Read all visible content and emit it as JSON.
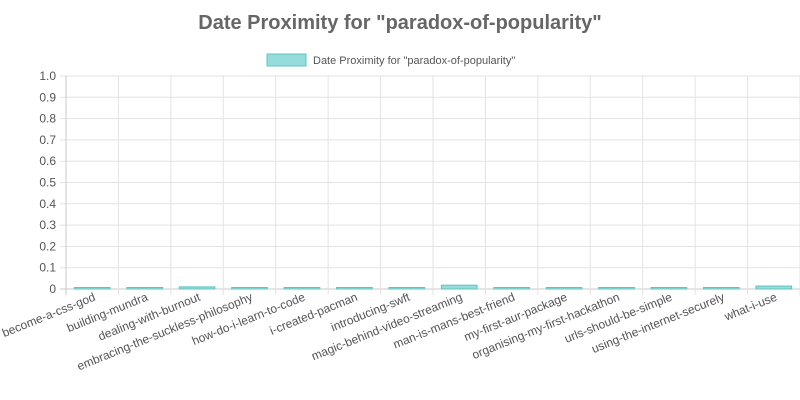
{
  "chart_data": {
    "type": "bar",
    "title": "Date Proximity for \"paradox-of-popularity\"",
    "legend": {
      "position": "top",
      "label": "Date Proximity for \"paradox-of-popularity\""
    },
    "grid": true,
    "ylim": [
      0,
      1
    ],
    "yticks": [
      "0",
      "0.1",
      "0.2",
      "0.3",
      "0.4",
      "0.5",
      "0.6",
      "0.7",
      "0.8",
      "0.9",
      "1.0"
    ],
    "categories": [
      "become-a-css-god",
      "building-mundra",
      "dealing-with-burnout",
      "embracing-the-suckless-philosophy",
      "how-do-i-learn-to-code",
      "i-created-pacman",
      "introducing-swft",
      "magic-behind-video-streaming",
      "man-is-mans-best-friend",
      "my-first-aur-package",
      "organising-my-first-hackathon",
      "urls-should-be-simple",
      "using-the-internet-securely",
      "what-i-use"
    ],
    "series": [
      {
        "name": "Date Proximity for \"paradox-of-popularity\"",
        "values": [
          0.002,
          0.003,
          0.01,
          0.002,
          0.003,
          0.003,
          0.003,
          0.018,
          0.001,
          0.002,
          0.005,
          0.002,
          0.002,
          0.014
        ],
        "fill": "#96dcdc",
        "stroke": "#5fc4c4"
      }
    ]
  }
}
